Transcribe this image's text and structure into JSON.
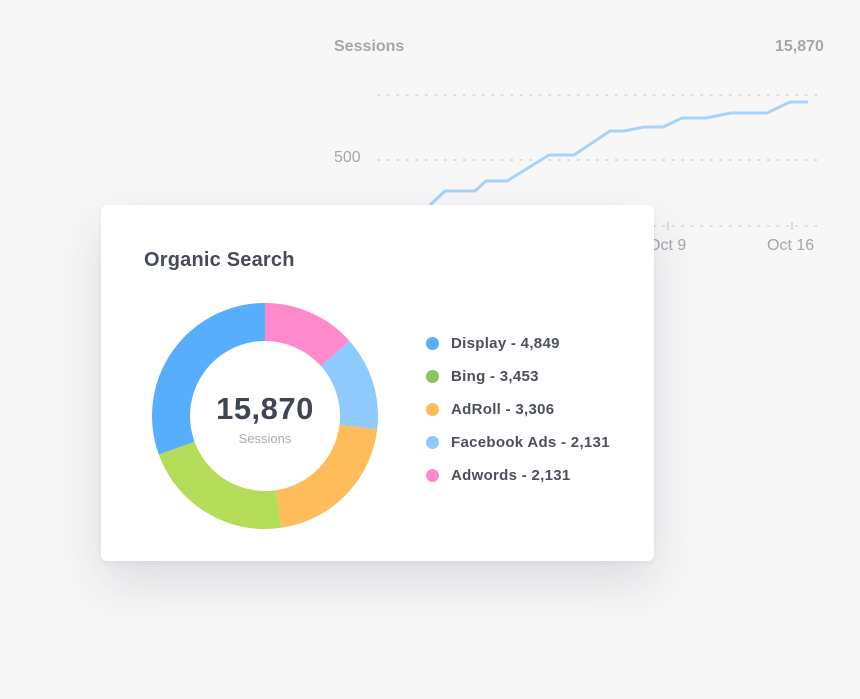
{
  "background_chart": {
    "title": "Sessions",
    "total": "15,870",
    "y_tick": "500",
    "x_ticks": [
      "Oct 9",
      "Oct 16"
    ],
    "line_color": "#a7d3fb"
  },
  "card": {
    "title": "Organic Search"
  },
  "chart_data": {
    "type": "pie",
    "variant": "donut",
    "total_label": "15,870",
    "total_sublabel": "Sessions",
    "slices": [
      {
        "label": "Display - 4,849",
        "name": "Display",
        "value": 4849,
        "color": "#56aefd"
      },
      {
        "label": "Bing - 3,453",
        "name": "Bing",
        "value": 3453,
        "color": "#b5dc58"
      },
      {
        "label": "AdRoll - 3,306",
        "name": "AdRoll",
        "value": 3306,
        "color": "#ffbc5a"
      },
      {
        "label": "Facebook Ads - 2,131",
        "name": "Facebook Ads",
        "value": 2131,
        "color": "#8ecafe"
      },
      {
        "label": "Adwords - 2,131",
        "name": "Adwords",
        "value": 2131,
        "color": "#ff8acb"
      }
    ],
    "legend_dot_colors": [
      "#56aefd",
      "#8cc563",
      "#ffbc5a",
      "#8ecafe",
      "#ff8acb"
    ],
    "legend_position": "right"
  }
}
